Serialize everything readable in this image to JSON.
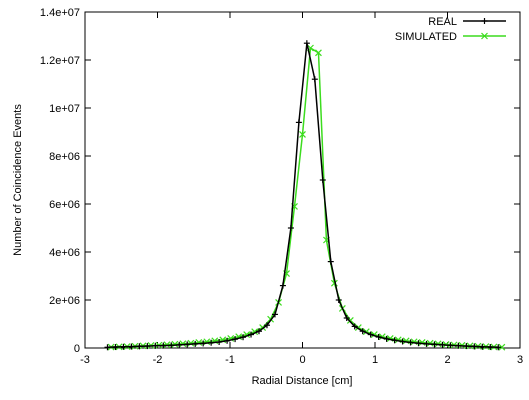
{
  "chart_data": {
    "type": "line",
    "title": "",
    "xlabel": "Radial Distance [cm]",
    "ylabel": "Number of Coincidence Events",
    "xlim": [
      -3,
      3
    ],
    "ylim": [
      0,
      14000000
    ],
    "x_ticks": [
      -3,
      -2,
      -1,
      0,
      1,
      2,
      3
    ],
    "x_tick_labels": [
      "-3",
      "-2",
      "-1",
      "0",
      "1",
      "2",
      "3"
    ],
    "y_ticks": [
      0,
      2000000,
      4000000,
      6000000,
      8000000,
      10000000,
      12000000,
      14000000
    ],
    "y_tick_labels": [
      "0",
      "2e+06",
      "4e+06",
      "6e+06",
      "8e+06",
      "1e+07",
      "1.2e+07",
      "1.4e+07"
    ],
    "grid": false,
    "legend_position": "top-right",
    "series": [
      {
        "name": "REAL",
        "color": "#000000",
        "marker": "plus",
        "x": [
          -2.69,
          -2.58,
          -2.47,
          -2.36,
          -2.25,
          -2.14,
          -2.03,
          -1.92,
          -1.81,
          -1.7,
          -1.59,
          -1.48,
          -1.37,
          -1.26,
          -1.15,
          -1.04,
          -0.93,
          -0.82,
          -0.71,
          -0.6,
          -0.49,
          -0.38,
          -0.27,
          -0.16,
          -0.05,
          0.06,
          0.17,
          0.28,
          0.39,
          0.5,
          0.61,
          0.72,
          0.83,
          0.94,
          1.05,
          1.16,
          1.27,
          1.38,
          1.49,
          1.6,
          1.71,
          1.82,
          1.93,
          2.04,
          2.15,
          2.26,
          2.37,
          2.48,
          2.59,
          2.7
        ],
        "y": [
          30000,
          40000,
          50000,
          60000,
          70000,
          80000,
          90000,
          100000,
          110000,
          130000,
          150000,
          170000,
          190000,
          220000,
          250000,
          300000,
          370000,
          450000,
          560000,
          700000,
          950000,
          1400000,
          2600000,
          5000000,
          9400000,
          12700000,
          11200000,
          7000000,
          3600000,
          2000000,
          1250000,
          900000,
          700000,
          560000,
          460000,
          380000,
          320000,
          270000,
          230000,
          200000,
          170000,
          150000,
          130000,
          110000,
          95000,
          80000,
          65000,
          50000,
          40000,
          30000
        ]
      },
      {
        "name": "SIMULATED",
        "color": "#3cdc1e",
        "marker": "cross",
        "x": [
          -2.64,
          -2.53,
          -2.42,
          -2.31,
          -2.2,
          -2.09,
          -1.98,
          -1.87,
          -1.76,
          -1.65,
          -1.54,
          -1.43,
          -1.32,
          -1.21,
          -1.1,
          -0.99,
          -0.88,
          -0.77,
          -0.66,
          -0.55,
          -0.44,
          -0.33,
          -0.22,
          -0.11,
          0.0,
          0.11,
          0.22,
          0.33,
          0.44,
          0.55,
          0.66,
          0.77,
          0.88,
          0.99,
          1.1,
          1.21,
          1.32,
          1.43,
          1.54,
          1.65,
          1.76,
          1.87,
          1.98,
          2.09,
          2.2,
          2.31,
          2.42,
          2.53,
          2.64,
          2.75
        ],
        "y": [
          40000,
          50000,
          60000,
          75000,
          90000,
          105000,
          120000,
          140000,
          160000,
          180000,
          200000,
          230000,
          260000,
          300000,
          340000,
          400000,
          470000,
          560000,
          680000,
          850000,
          1200000,
          1900000,
          3100000,
          5900000,
          8900000,
          12500000,
          12300000,
          4500000,
          2700000,
          1650000,
          1150000,
          850000,
          680000,
          560000,
          470000,
          400000,
          340000,
          300000,
          260000,
          230000,
          200000,
          175000,
          150000,
          130000,
          110000,
          90000,
          75000,
          60000,
          45000,
          35000
        ]
      }
    ]
  }
}
